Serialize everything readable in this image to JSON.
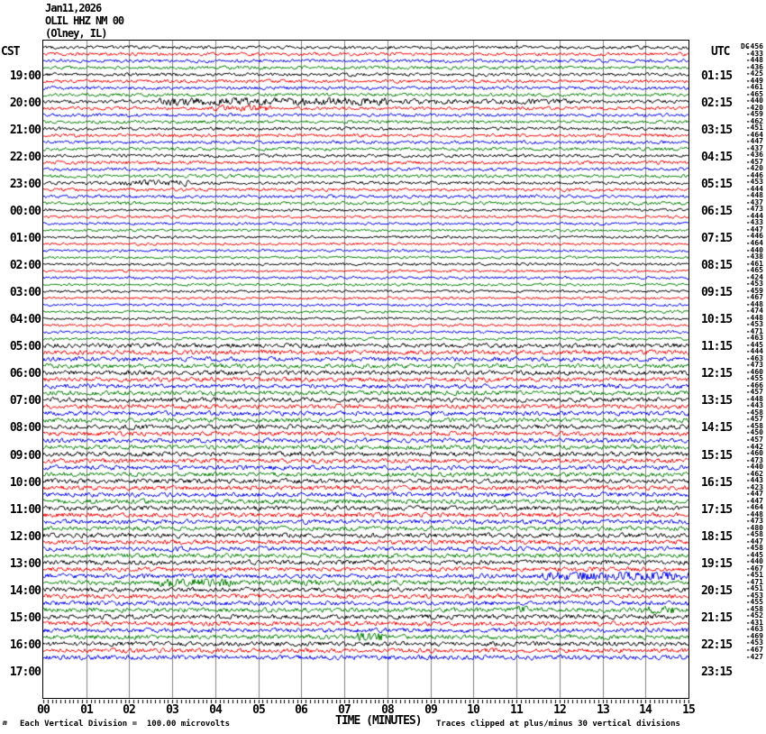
{
  "header": {
    "date_line": "Jan11,2026",
    "station_line": "OLIL HHZ NM 00",
    "location_line": "(Olney, IL)"
  },
  "footer": {
    "scale_note": "Each Vertical Division =  100.00 microvolts",
    "clip_note": "Traces clipped at plus/minus 30 vertical divisions",
    "corner_mark": "m"
  },
  "chart_data": {
    "type": "line",
    "subtype": "helicorder-seismogram",
    "title": "OLIL HHZ NM 00 (Olney, IL) Jan11,2026",
    "left_axis_title": "CST",
    "right_axis_title": "UTC",
    "x_axis_title": "TIME (MINUTES)",
    "x_tick_labels": [
      "00",
      "01",
      "02",
      "03",
      "04",
      "05",
      "06",
      "07",
      "08",
      "09",
      "10",
      "11",
      "12",
      "13",
      "14",
      "15"
    ],
    "x_range_minutes": [
      0,
      15
    ],
    "minor_ticks_per_minute": 10,
    "minutes_per_line": 15,
    "num_trace_lines": 91,
    "label_every_n_lines": 4,
    "first_line_start_cst": "18:00",
    "first_line_start_utc": "00:00",
    "left_time_labels": [
      "19:00",
      "20:00",
      "21:00",
      "22:00",
      "23:00",
      "00:00",
      "01:00",
      "02:00",
      "03:00",
      "04:00",
      "05:00",
      "06:00",
      "07:00",
      "08:00",
      "09:00",
      "10:00",
      "11:00",
      "12:00",
      "13:00",
      "14:00",
      "15:00",
      "16:00",
      "17:00"
    ],
    "right_time_labels": [
      "01:15",
      "02:15",
      "03:15",
      "04:15",
      "05:15",
      "06:15",
      "07:15",
      "08:15",
      "09:15",
      "10:15",
      "11:15",
      "12:15",
      "13:15",
      "14:15",
      "15:15",
      "16:15",
      "17:15",
      "18:15",
      "19:15",
      "20:15",
      "21:15",
      "22:15",
      "23:15"
    ],
    "trace_color_cycle": [
      "#000000",
      "#ff0000",
      "#0000ff",
      "#008000"
    ],
    "grid_color": "#808080",
    "microvolts_per_division": 100.0,
    "clip_divisions": 30,
    "dc_header": "DC",
    "dc_offsets_microvolts": [
      -456,
      -433,
      -448,
      -436,
      -425,
      -449,
      -461,
      -465,
      -440,
      -420,
      -459,
      -462,
      -451,
      -464,
      -447,
      -437,
      -436,
      -457,
      -420,
      -446,
      -453,
      -444,
      -448,
      -437,
      -473,
      -444,
      -433,
      -447,
      -446,
      -464,
      -440,
      -438,
      -461,
      -465,
      -424,
      -453,
      -459,
      -467,
      -448,
      -474,
      -448,
      -453,
      -471,
      -463,
      -445,
      -444,
      -463,
      -473,
      -460,
      -455,
      -466,
      -457,
      -448,
      -443,
      -458,
      -457,
      -458,
      -450,
      -457,
      -442,
      -460,
      -473,
      -440,
      -462,
      -443,
      -423,
      -447,
      -447,
      -464,
      -448,
      -473,
      -480,
      -458,
      -447,
      -458,
      -445,
      -440,
      -467,
      -451,
      -471,
      -451,
      -453,
      -455,
      -458,
      -452,
      -431,
      -463,
      -469,
      -453,
      -467,
      -427
    ],
    "amplitude_profile": [
      {
        "from_row": 0,
        "to_row": 23,
        "amp": 1.05
      },
      {
        "from_row": 24,
        "to_row": 43,
        "amp": 0.85
      },
      {
        "from_row": 44,
        "to_row": 90,
        "amp": 1.45
      }
    ],
    "events": [
      {
        "row": 8,
        "start_min": 2.7,
        "end_min": 8.0,
        "amp": 2.6
      },
      {
        "row": 8,
        "start_min": 8.0,
        "end_min": 12.3,
        "amp": 1.7
      },
      {
        "row": 9,
        "start_min": 3.9,
        "end_min": 5.3,
        "amp": 2.0
      },
      {
        "row": 20,
        "start_min": 1.8,
        "end_min": 3.4,
        "amp": 1.9
      },
      {
        "row": 78,
        "start_min": 11.6,
        "end_min": 15.0,
        "amp": 3.4
      },
      {
        "row": 79,
        "start_min": 2.7,
        "end_min": 4.4,
        "amp": 2.9
      },
      {
        "row": 79,
        "start_min": 4.4,
        "end_min": 9.5,
        "amp": 1.7
      },
      {
        "row": 83,
        "start_min": 10.9,
        "end_min": 11.3,
        "amp": 2.6
      },
      {
        "row": 83,
        "start_min": 13.9,
        "end_min": 14.7,
        "amp": 2.6
      },
      {
        "row": 87,
        "start_min": 7.3,
        "end_min": 7.9,
        "amp": 3.4
      }
    ]
  }
}
